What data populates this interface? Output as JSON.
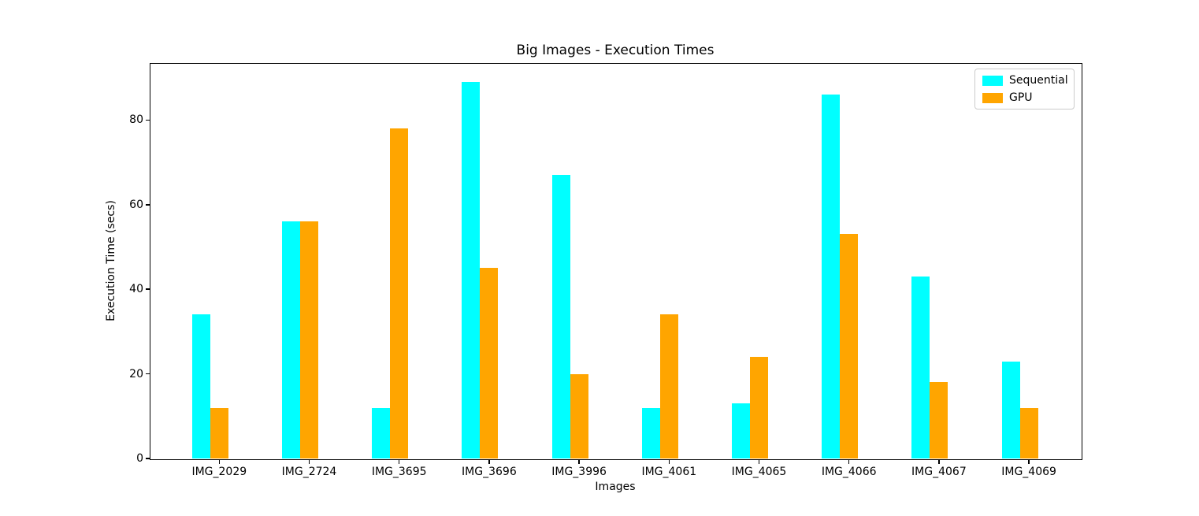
{
  "chart_data": {
    "type": "bar",
    "title": "Big Images - Execution Times",
    "xlabel": "Images",
    "ylabel": "Execution Time (secs)",
    "categories": [
      "IMG_2029",
      "IMG_2724",
      "IMG_3695",
      "IMG_3696",
      "IMG_3996",
      "IMG_4061",
      "IMG_4065",
      "IMG_4066",
      "IMG_4067",
      "IMG_4069"
    ],
    "series": [
      {
        "name": "Sequential",
        "color": "#00FFFF",
        "values": [
          34,
          56,
          12,
          89,
          67,
          12,
          13,
          86,
          43,
          23
        ]
      },
      {
        "name": "GPU",
        "color": "#FFA500",
        "values": [
          12,
          56,
          78,
          45,
          20,
          34,
          24,
          53,
          18,
          12
        ]
      }
    ],
    "yticks": [
      0,
      20,
      40,
      60,
      80
    ],
    "ylim": [
      0,
      93.5
    ],
    "grid": false,
    "legend_position": "upper right",
    "spine_color": "#000000",
    "background_color": "#ffffff"
  }
}
